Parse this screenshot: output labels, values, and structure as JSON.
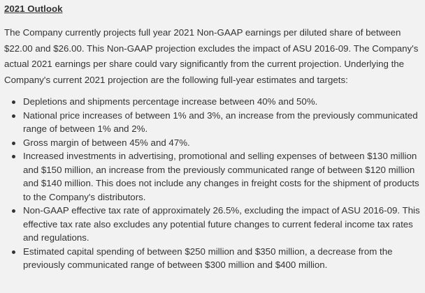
{
  "heading": "2021 Outlook",
  "intro": "The Company currently projects full year 2021 Non-GAAP earnings per diluted share of between $22.00 and $26.00.  This Non-GAAP projection excludes the impact of ASU 2016-09.  The Company's actual 2021 earnings per share could vary significantly from the current projection. Underlying the Company's current 2021 projection are the following full-year estimates and targets:",
  "bullets": [
    "Depletions and shipments percentage increase between 40% and 50%.",
    "National price increases of between 1% and 3%, an increase from the previously communicated range of between 1% and 2%.",
    "Gross margin of between 45% and 47%.",
    "Increased investments in advertising, promotional and selling expenses of between $130 million and $150 million, an increase from the previously communicated range of between $120 million and $140 million.  This does not include any changes in freight costs for the shipment of products to the Company's distributors.",
    "Non-GAAP effective tax rate of approximately 26.5%, excluding the impact of ASU 2016-09. This effective tax rate also excludes any potential future changes to current federal income tax rates and regulations.",
    "Estimated capital spending of between $250 million and $350 million, a decrease from the previously communicated range of between $300 million and $400 million."
  ]
}
